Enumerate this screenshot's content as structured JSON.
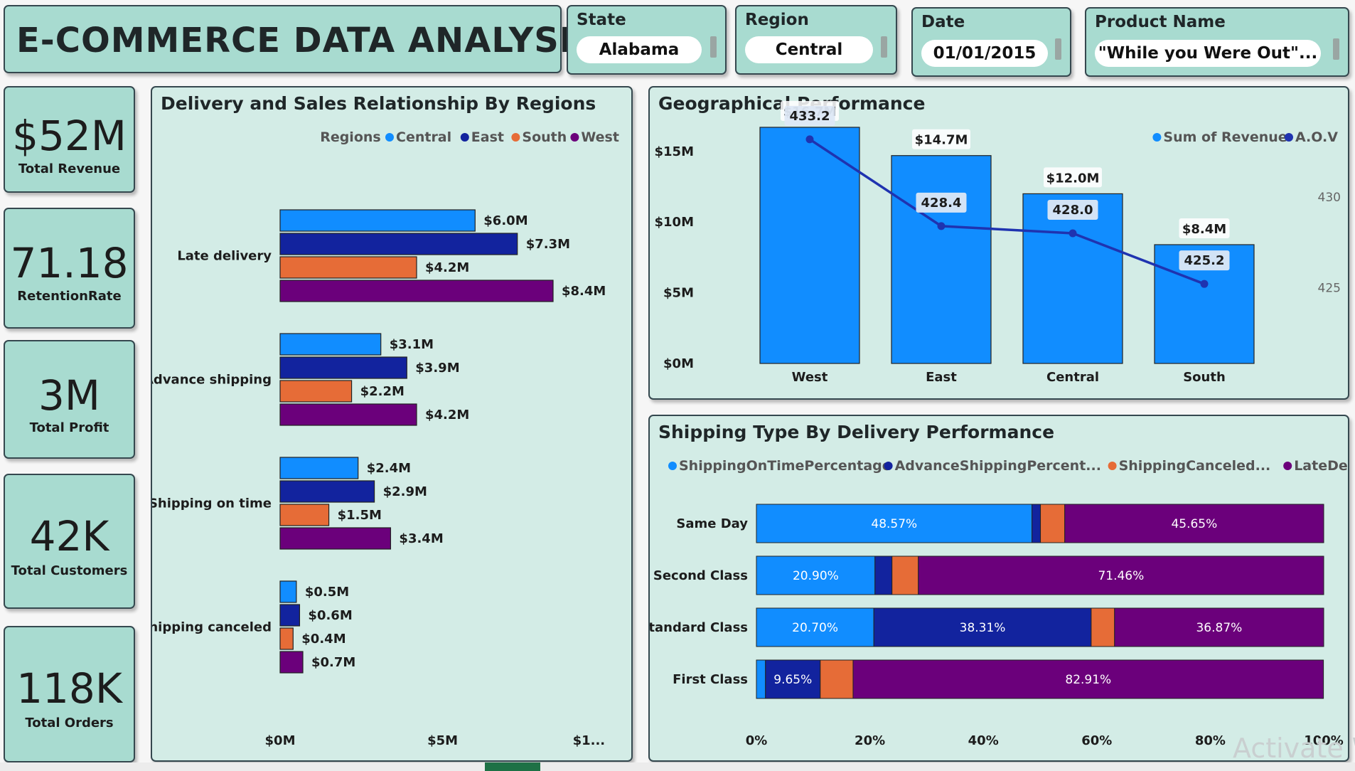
{
  "header": {
    "title": "E-COMMERCE DATA ANALYSIS"
  },
  "slicers": [
    {
      "label": "State",
      "value": "Alabama"
    },
    {
      "label": "Region",
      "value": "Central"
    },
    {
      "label": "Date",
      "value": "01/01/2015"
    },
    {
      "label": "Product Name",
      "value": "\"While you Were Out\"..."
    }
  ],
  "kpis": [
    {
      "value": "$52M",
      "label": "Total Revenue"
    },
    {
      "value": "71.18",
      "label": "RetentionRate"
    },
    {
      "value": "3M",
      "label": "Total Profit"
    },
    {
      "value": "42K",
      "label": "Total Customers"
    },
    {
      "value": "118K",
      "label": "Total Orders"
    }
  ],
  "watermark": "Activate W",
  "chart_data": [
    {
      "type": "bar",
      "orientation": "horizontal",
      "title": "Delivery and Sales Relationship By Regions",
      "legend_title": "Regions",
      "legend_position": "top-right",
      "categories": [
        "Late delivery",
        "Advance shipping",
        "Shipping on time",
        "Shipping canceled"
      ],
      "series": [
        {
          "name": "Central",
          "color": "#118dff",
          "values": [
            6.0,
            3.1,
            2.4,
            0.5
          ],
          "labels": [
            "$6.0M",
            "$3.1M",
            "$2.4M",
            "$0.5M"
          ]
        },
        {
          "name": "East",
          "color": "#12239e",
          "values": [
            7.3,
            3.9,
            2.9,
            0.6
          ],
          "labels": [
            "$7.3M",
            "$3.9M",
            "$2.9M",
            "$0.6M"
          ]
        },
        {
          "name": "South",
          "color": "#e66c37",
          "values": [
            4.2,
            2.2,
            1.5,
            0.4
          ],
          "labels": [
            "$4.2M",
            "$2.2M",
            "$1.5M",
            "$0.4M"
          ]
        },
        {
          "name": "West",
          "color": "#6b007b",
          "values": [
            8.4,
            4.2,
            3.4,
            0.7
          ],
          "labels": [
            "$8.4M",
            "$4.2M",
            "$3.4M",
            "$0.7M"
          ]
        }
      ],
      "x_ticks": [
        "$0M",
        "$5M",
        "$1..."
      ],
      "x_tick_values": [
        0,
        5,
        10
      ],
      "xlim": [
        0,
        10.5
      ],
      "grid": false
    },
    {
      "type": "bar+line",
      "title": "Geographical Performance",
      "legend_position": "top-right",
      "categories": [
        "West",
        "East",
        "Central",
        "South"
      ],
      "bar_series": {
        "name": "Sum of Revenue",
        "color": "#118dff",
        "values": [
          16.7,
          14.7,
          12.0,
          8.4
        ],
        "labels": [
          "$16.7M",
          "$14.7M",
          "$12.0M",
          "$8.4M"
        ]
      },
      "line_series": {
        "name": "A.O.V",
        "color": "#1f33b0",
        "values": [
          433.2,
          428.4,
          428.0,
          425.2
        ],
        "labels": [
          "433.2",
          "428.4",
          "428.0",
          "425.2"
        ]
      },
      "y_ticks": [
        "$0M",
        "$5M",
        "$10M",
        "$15M"
      ],
      "y_tick_values": [
        0,
        5,
        10,
        15
      ],
      "ylim": [
        0,
        17
      ],
      "y2_ticks": [
        "425",
        "430"
      ],
      "y2_tick_values": [
        425,
        430
      ],
      "y2lim": [
        420.8,
        434.1
      ],
      "grid": false
    },
    {
      "type": "bar",
      "orientation": "horizontal",
      "stacked": "100%",
      "title": "Shipping Type By Delivery Performance",
      "legend_position": "top-left",
      "categories": [
        "Same Day",
        "Second Class",
        "Standard Class",
        "First Class"
      ],
      "series": [
        {
          "name": "ShippingOnTimePercentage",
          "color": "#118dff",
          "values": [
            48.57,
            20.9,
            20.7,
            1.6
          ],
          "labels": [
            "48.57%",
            "20.90%",
            "20.70%",
            ""
          ]
        },
        {
          "name": "AdvanceShippingPercent...",
          "color": "#12239e",
          "values": [
            1.5,
            3.0,
            38.31,
            9.65
          ],
          "labels": [
            "",
            "",
            "38.31%",
            "9.65%"
          ]
        },
        {
          "name": "ShippingCanceled...",
          "color": "#e66c37",
          "values": [
            4.28,
            4.64,
            4.12,
            5.79
          ],
          "labels": [
            "",
            "",
            "",
            ""
          ]
        },
        {
          "name": "LateDeliveryP...",
          "color": "#6b007b",
          "values": [
            45.65,
            71.46,
            36.87,
            82.91
          ],
          "labels": [
            "45.65%",
            "71.46%",
            "36.87%",
            "82.91%"
          ]
        }
      ],
      "x_ticks": [
        "0%",
        "20%",
        "40%",
        "60%",
        "80%",
        "100%"
      ],
      "x_tick_values": [
        0,
        20,
        40,
        60,
        80,
        100
      ],
      "xlim": [
        0,
        100
      ],
      "grid": false
    }
  ]
}
